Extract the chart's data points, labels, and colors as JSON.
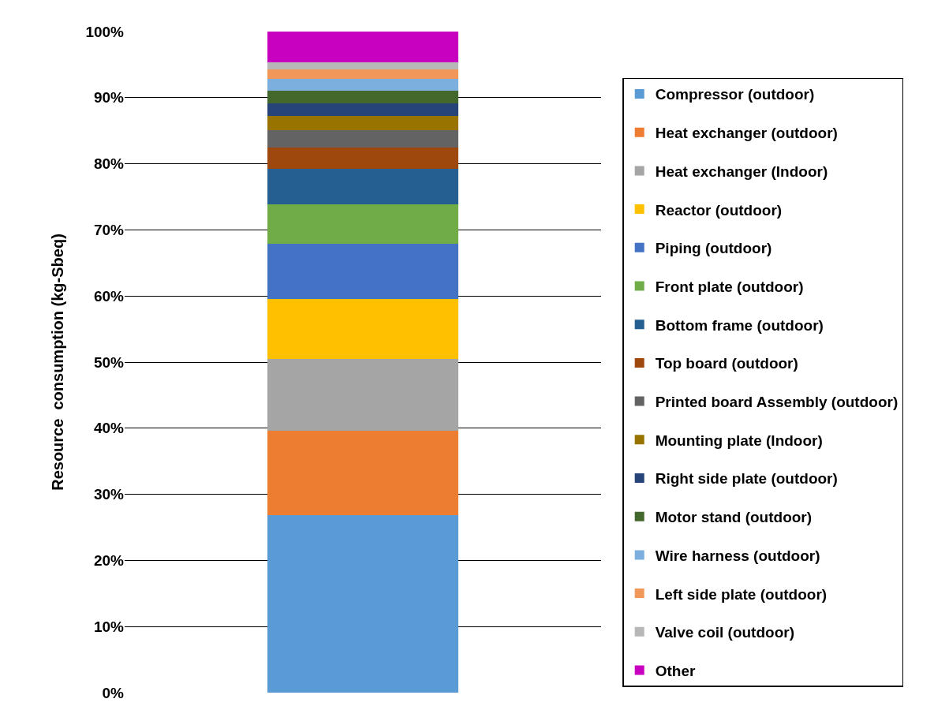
{
  "chart_data": {
    "type": "bar",
    "stacked": true,
    "ylabel": "Resource  consumption (kg-Sbeq)",
    "categories": [
      null
    ],
    "ylim": [
      0,
      100
    ],
    "yticks": [
      {
        "value": 0,
        "label": "0%"
      },
      {
        "value": 10,
        "label": "10%"
      },
      {
        "value": 20,
        "label": "20%"
      },
      {
        "value": 30,
        "label": "30%"
      },
      {
        "value": 40,
        "label": "40%"
      },
      {
        "value": 50,
        "label": "50%"
      },
      {
        "value": 60,
        "label": "60%"
      },
      {
        "value": 70,
        "label": "70%"
      },
      {
        "value": 80,
        "label": "80%"
      },
      {
        "value": 90,
        "label": "90%"
      },
      {
        "value": 100,
        "label": "100%"
      }
    ],
    "grid": "y",
    "legend": "right",
    "series": [
      {
        "name": "Compressor (outdoor)",
        "color": "#5b9bd5",
        "values": [
          26.9
        ]
      },
      {
        "name": "Heat exchanger (outdoor)",
        "color": "#ed7d31",
        "values": [
          12.7
        ]
      },
      {
        "name": "Heat exchanger (Indoor)",
        "color": "#a5a5a5",
        "values": [
          10.9
        ]
      },
      {
        "name": "Reactor (outdoor)",
        "color": "#ffc000",
        "values": [
          9.0
        ]
      },
      {
        "name": "Piping (outdoor)",
        "color": "#4472c4",
        "values": [
          8.4
        ]
      },
      {
        "name": "Front plate (outdoor)",
        "color": "#70ad47",
        "values": [
          6.0
        ]
      },
      {
        "name": "Bottom frame (outdoor)",
        "color": "#255e91",
        "values": [
          5.3
        ]
      },
      {
        "name": "Top board (outdoor)",
        "color": "#9e480e",
        "values": [
          3.3
        ]
      },
      {
        "name": "Printed board Assembly (outdoor)",
        "color": "#636363",
        "values": [
          2.6
        ]
      },
      {
        "name": "Mounting plate (Indoor)",
        "color": "#997300",
        "values": [
          2.1
        ]
      },
      {
        "name": "Right side plate (outdoor)",
        "color": "#264478",
        "values": [
          2.0
        ]
      },
      {
        "name": "Motor stand (outdoor)",
        "color": "#43682b",
        "values": [
          1.8
        ]
      },
      {
        "name": "Wire harness (outdoor)",
        "color": "#7cafdd",
        "values": [
          1.8
        ]
      },
      {
        "name": "Left side plate (outdoor)",
        "color": "#f1975a",
        "values": [
          1.5
        ]
      },
      {
        "name": "Valve coil (outdoor)",
        "color": "#b7b7b7",
        "values": [
          1.1
        ]
      },
      {
        "name": "Other",
        "color": "#c800c0",
        "values": [
          4.6
        ]
      }
    ]
  }
}
